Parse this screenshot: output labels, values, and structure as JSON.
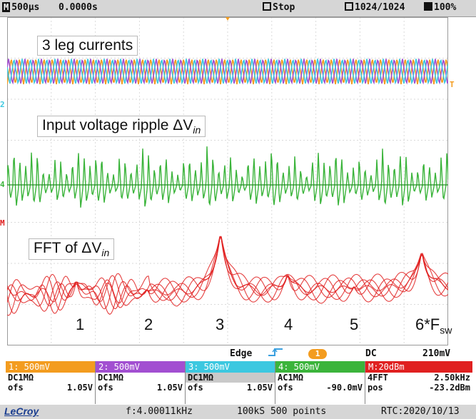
{
  "topbar": {
    "timebase": "500µs",
    "delay": "0.0000s",
    "state": "Stop",
    "acquisitions": "1024/1024",
    "zoom": "100%"
  },
  "screen": {
    "label_currents": "3 leg currents",
    "label_ripple_prefix": "Input voltage ripple ΔV",
    "label_ripple_sub": "in",
    "label_fft_prefix": "FFT of ΔV",
    "label_fft_sub": "in",
    "harmonics": [
      "1",
      "2",
      "3",
      "4",
      "5",
      "6*F"
    ],
    "harmonic_sub": "sw",
    "markers": {
      "ch2": "2",
      "ch4": "4",
      "math": "M",
      "trig": "T"
    },
    "colors": {
      "ch1": "#f39c1f",
      "ch2": "#a24fd1",
      "ch3": "#3cc8e0",
      "ch4": "#3bb43b",
      "math": "#e02020"
    }
  },
  "trigger": {
    "type": "Edge",
    "source": "1",
    "coupling": "DC",
    "level": "210mV"
  },
  "channels": [
    {
      "hdr": "1: 500mV",
      "coupling": "DC1MΩ",
      "ofs_label": "ofs",
      "ofs": "1.05V",
      "color": "#f39c1f"
    },
    {
      "hdr": "2: 500mV",
      "coupling": "DC1MΩ",
      "ofs_label": "ofs",
      "ofs": "1.05V",
      "color": "#a24fd1"
    },
    {
      "hdr": "3: 500mV",
      "coupling": "DC1MΩ",
      "ofs_label": "ofs",
      "ofs": "1.05V",
      "color": "#3cc8e0"
    },
    {
      "hdr": "4: 500mV",
      "coupling": "AC1MΩ",
      "ofs_label": "ofs",
      "ofs": "-90.0mV",
      "color": "#3bb43b"
    },
    {
      "hdr": "M:20dBm",
      "coupling": "4FFT",
      "coupling_r": "2.50kHz",
      "ofs_label": "pos",
      "ofs": "-23.2dBm",
      "color": "#e02020"
    }
  ],
  "footer": {
    "brand": "LeCroy",
    "freq": "f:4.00011kHz",
    "sampling": "100kS 500 points",
    "rtc": "RTC:2020/10/13"
  }
}
